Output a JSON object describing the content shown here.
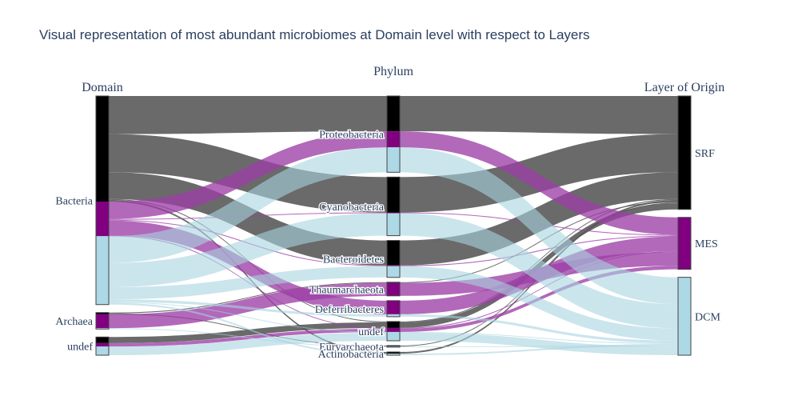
{
  "chart_data": {
    "type": "parallel-categories",
    "title": "Visual representation of most abundant microbiomes at Domain level with respect to Layers",
    "colors": {
      "black": "#000000",
      "purple": "#800080",
      "lightblue": "#add8e6"
    },
    "dimensions": [
      {
        "label": "Domain",
        "categories": [
          "Bacteria",
          "Archaea",
          "undef"
        ]
      },
      {
        "label": "Phylum",
        "categories": [
          "Proteobacteria",
          "Cyanobacteria",
          "Bacteroidetes",
          "Thaumarchaeota",
          "Deferribacteres",
          "undef",
          "Euryarchaeota",
          "Actinobacteria"
        ]
      },
      {
        "label": "Layer of Origin",
        "categories": [
          "SRF",
          "MES",
          "DCM"
        ]
      }
    ],
    "color_categories": [
      "SRF",
      "MES",
      "DCM"
    ],
    "color_map": {
      "SRF": "black",
      "MES": "purple",
      "DCM": "lightblue"
    },
    "paths": [
      {
        "domain": "Bacteria",
        "phylum": "Proteobacteria",
        "layer": "SRF",
        "count": 44
      },
      {
        "domain": "Bacteria",
        "phylum": "Proteobacteria",
        "layer": "MES",
        "count": 20
      },
      {
        "domain": "Bacteria",
        "phylum": "Proteobacteria",
        "layer": "DCM",
        "count": 31
      },
      {
        "domain": "Bacteria",
        "phylum": "Cyanobacteria",
        "layer": "SRF",
        "count": 44
      },
      {
        "domain": "Bacteria",
        "phylum": "Cyanobacteria",
        "layer": "MES",
        "count": 1
      },
      {
        "domain": "Bacteria",
        "phylum": "Cyanobacteria",
        "layer": "DCM",
        "count": 28
      },
      {
        "domain": "Bacteria",
        "phylum": "Bacteroidetes",
        "layer": "SRF",
        "count": 31
      },
      {
        "domain": "Bacteria",
        "phylum": "Bacteroidetes",
        "layer": "MES",
        "count": 1
      },
      {
        "domain": "Bacteria",
        "phylum": "Bacteroidetes",
        "layer": "DCM",
        "count": 14
      },
      {
        "domain": "Bacteria",
        "phylum": "Deferribacteres",
        "layer": "MES",
        "count": 17
      },
      {
        "domain": "Bacteria",
        "phylum": "Deferribacteres",
        "layer": "DCM",
        "count": 3
      },
      {
        "domain": "Bacteria",
        "phylum": "undef",
        "layer": "SRF",
        "count": 1
      },
      {
        "domain": "Bacteria",
        "phylum": "undef",
        "layer": "MES",
        "count": 1
      },
      {
        "domain": "Bacteria",
        "phylum": "undef",
        "layer": "DCM",
        "count": 1
      },
      {
        "domain": "Bacteria",
        "phylum": "Actinobacteria",
        "layer": "SRF",
        "count": 2
      },
      {
        "domain": "Bacteria",
        "phylum": "Actinobacteria",
        "layer": "DCM",
        "count": 2
      },
      {
        "domain": "Archaea",
        "phylum": "Thaumarchaeota",
        "layer": "SRF",
        "count": 1
      },
      {
        "domain": "Archaea",
        "phylum": "Thaumarchaeota",
        "layer": "MES",
        "count": 16
      },
      {
        "domain": "Archaea",
        "phylum": "Euryarchaeota",
        "layer": "SRF",
        "count": 1
      },
      {
        "domain": "Archaea",
        "phylum": "Euryarchaeota",
        "layer": "DCM",
        "count": 1
      },
      {
        "domain": "undef",
        "phylum": "undef",
        "layer": "SRF",
        "count": 7
      },
      {
        "domain": "undef",
        "phylum": "undef",
        "layer": "MES",
        "count": 4
      },
      {
        "domain": "undef",
        "phylum": "undef",
        "layer": "DCM",
        "count": 10
      }
    ]
  }
}
